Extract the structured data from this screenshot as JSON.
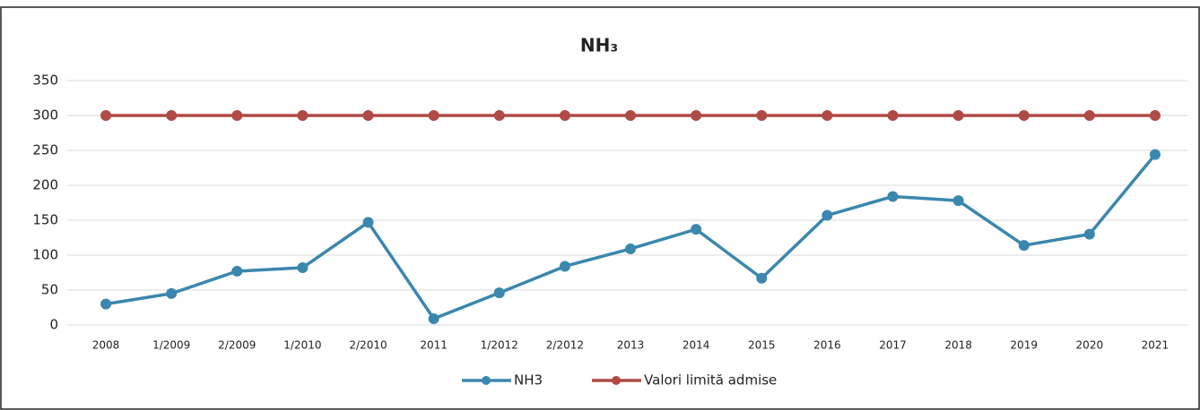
{
  "chart_data": {
    "type": "line",
    "title": "NH₃",
    "categories": [
      "2008",
      "1/2009",
      "2/2009",
      "1/2010",
      "2/2010",
      "2011",
      "1/2012",
      "2/2012",
      "2013",
      "2014",
      "2015",
      "2016",
      "2017",
      "2018",
      "2019",
      "2020",
      "2021"
    ],
    "series": [
      {
        "name": "NH3",
        "color": "#3b87ad",
        "values": [
          30,
          45,
          77,
          82,
          147,
          9,
          46,
          84,
          109,
          137,
          67,
          157,
          184,
          178,
          114,
          130,
          244
        ]
      },
      {
        "name": "Valori limită admise",
        "color": "#b04a46",
        "values": [
          300,
          300,
          300,
          300,
          300,
          300,
          300,
          300,
          300,
          300,
          300,
          300,
          300,
          300,
          300,
          300,
          300
        ]
      }
    ],
    "ylim": [
      0,
      350
    ],
    "yticks": [
      0,
      50,
      100,
      150,
      200,
      250,
      300,
      350
    ],
    "grid": true,
    "legend": "bottom"
  }
}
